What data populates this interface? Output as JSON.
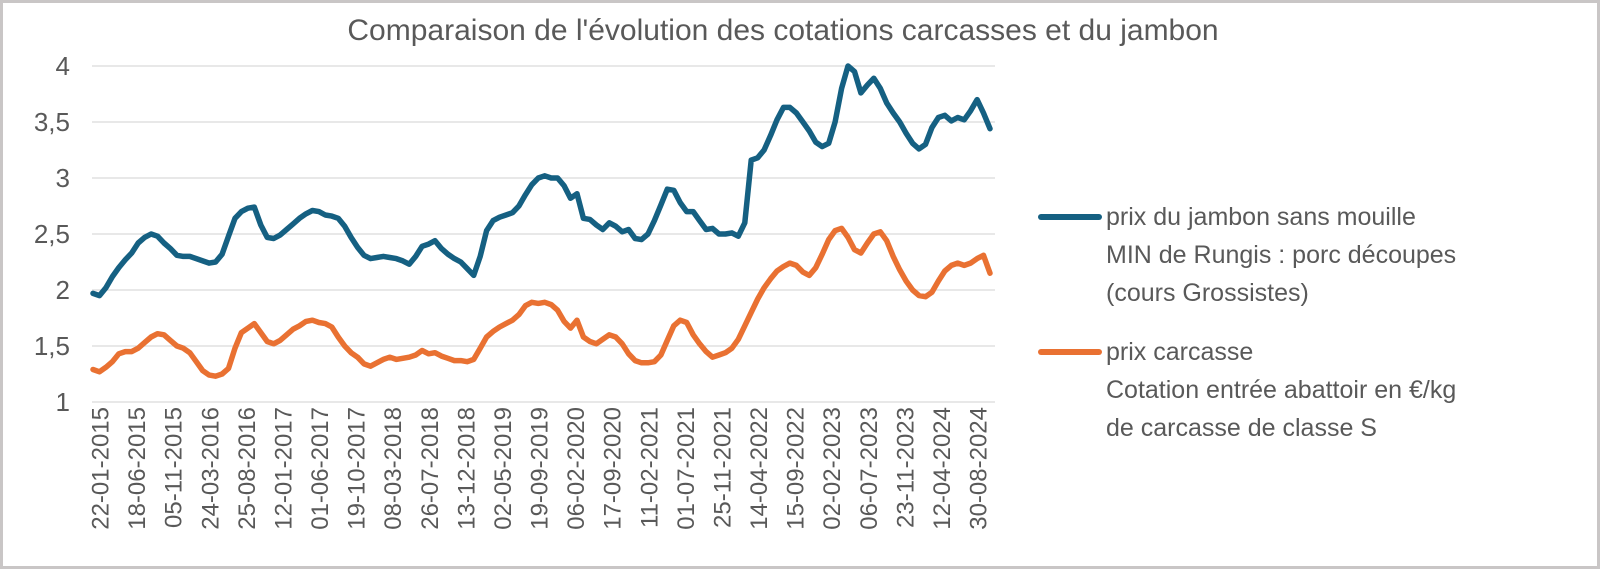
{
  "window": {
    "border_color": "#c9c6c6",
    "background": "#ffffff"
  },
  "chart": {
    "title": "Comparaison de l'évolution des cotations carcasses et du jambon",
    "styles": {
      "title_color": "#595959",
      "axis_text_color": "#595959",
      "gridline_color": "#d9d9d9",
      "series1_color": "#156082",
      "series2_color": "#E97132"
    },
    "y_axis_labels": [
      "4",
      "3,5",
      "3",
      "2,5",
      "2",
      "1,5",
      "1"
    ],
    "legend": {
      "items": [
        {
          "icon": "line-swatch",
          "lines": [
            "prix du jambon sans mouille",
            "MIN de Rungis : porc découpes",
            "(cours Grossistes)"
          ]
        },
        {
          "icon": "line-swatch",
          "lines": [
            "prix carcasse",
            "Cotation entrée abattoir en €/kg",
            "de carcasse de classe S"
          ]
        }
      ]
    }
  },
  "chart_data": {
    "type": "line",
    "title": "Comparaison de l'évolution des cotations carcasses et du jambon",
    "xlabel": "",
    "ylabel": "",
    "ylim": [
      1,
      4
    ],
    "y_ticks": [
      4,
      3.5,
      3,
      2.5,
      2,
      1.5,
      1
    ],
    "grid": true,
    "legend_position": "right",
    "x_tick_labels": [
      "22-01-2015",
      "18-06-2015",
      "05-11-2015",
      "24-03-2016",
      "25-08-2016",
      "12-01-2017",
      "01-06-2017",
      "19-10-2017",
      "08-03-2018",
      "26-07-2018",
      "13-12-2018",
      "02-05-2019",
      "19-09-2019",
      "06-02-2020",
      "17-09-2020",
      "11-02-2021",
      "01-07-2021",
      "25-11-2021",
      "14-04-2022",
      "15-09-2022",
      "02-02-2023",
      "06-07-2023",
      "23-11-2023",
      "12-04-2024",
      "30-08-2024"
    ],
    "series": [
      {
        "name": "prix du jambon sans mouille MIN de Rungis : porc découpes (cours Grossistes)",
        "color": "#156082",
        "values": [
          1.97,
          1.95,
          2.02,
          2.12,
          2.2,
          2.27,
          2.33,
          2.42,
          2.47,
          2.5,
          2.48,
          2.42,
          2.37,
          2.31,
          2.3,
          2.3,
          2.28,
          2.26,
          2.24,
          2.25,
          2.32,
          2.48,
          2.64,
          2.7,
          2.73,
          2.74,
          2.58,
          2.47,
          2.46,
          2.49,
          2.54,
          2.59,
          2.64,
          2.68,
          2.71,
          2.7,
          2.67,
          2.66,
          2.64,
          2.57,
          2.47,
          2.38,
          2.31,
          2.28,
          2.29,
          2.3,
          2.29,
          2.28,
          2.26,
          2.23,
          2.3,
          2.39,
          2.41,
          2.44,
          2.37,
          2.32,
          2.28,
          2.25,
          2.19,
          2.13,
          2.3,
          2.53,
          2.62,
          2.65,
          2.67,
          2.69,
          2.75,
          2.85,
          2.94,
          3.0,
          3.02,
          3.0,
          3.0,
          2.93,
          2.82,
          2.86,
          2.64,
          2.63,
          2.58,
          2.54,
          2.6,
          2.57,
          2.52,
          2.54,
          2.46,
          2.45,
          2.5,
          2.62,
          2.76,
          2.9,
          2.89,
          2.78,
          2.7,
          2.7,
          2.62,
          2.54,
          2.55,
          2.5,
          2.5,
          2.51,
          2.48,
          2.6,
          3.16,
          3.18,
          3.25,
          3.38,
          3.52,
          3.63,
          3.63,
          3.58,
          3.5,
          3.42,
          3.32,
          3.28,
          3.31,
          3.5,
          3.8,
          4.0,
          3.95,
          3.76,
          3.83,
          3.89,
          3.8,
          3.67,
          3.58,
          3.5,
          3.4,
          3.31,
          3.26,
          3.3,
          3.45,
          3.54,
          3.56,
          3.51,
          3.54,
          3.52,
          3.6,
          3.7,
          3.58,
          3.44
        ]
      },
      {
        "name": "prix carcasse Cotation entrée abattoir en €/kg de carcasse de classe S",
        "color": "#E97132",
        "values": [
          1.29,
          1.27,
          1.31,
          1.36,
          1.43,
          1.45,
          1.45,
          1.48,
          1.53,
          1.58,
          1.61,
          1.6,
          1.55,
          1.5,
          1.48,
          1.44,
          1.36,
          1.28,
          1.24,
          1.23,
          1.25,
          1.3,
          1.48,
          1.62,
          1.66,
          1.7,
          1.62,
          1.54,
          1.52,
          1.55,
          1.6,
          1.65,
          1.68,
          1.72,
          1.73,
          1.71,
          1.7,
          1.67,
          1.58,
          1.5,
          1.44,
          1.4,
          1.34,
          1.32,
          1.35,
          1.38,
          1.4,
          1.38,
          1.39,
          1.4,
          1.42,
          1.46,
          1.43,
          1.44,
          1.41,
          1.39,
          1.37,
          1.37,
          1.36,
          1.38,
          1.48,
          1.58,
          1.63,
          1.67,
          1.7,
          1.73,
          1.78,
          1.86,
          1.89,
          1.88,
          1.89,
          1.87,
          1.82,
          1.72,
          1.66,
          1.73,
          1.58,
          1.54,
          1.52,
          1.56,
          1.6,
          1.58,
          1.52,
          1.43,
          1.37,
          1.35,
          1.35,
          1.36,
          1.42,
          1.55,
          1.68,
          1.73,
          1.71,
          1.6,
          1.52,
          1.45,
          1.4,
          1.42,
          1.44,
          1.48,
          1.56,
          1.68,
          1.8,
          1.92,
          2.02,
          2.1,
          2.17,
          2.21,
          2.24,
          2.22,
          2.16,
          2.13,
          2.2,
          2.32,
          2.45,
          2.53,
          2.55,
          2.47,
          2.36,
          2.33,
          2.42,
          2.5,
          2.52,
          2.44,
          2.3,
          2.18,
          2.08,
          2.0,
          1.95,
          1.94,
          1.98,
          2.08,
          2.17,
          2.22,
          2.24,
          2.22,
          2.24,
          2.28,
          2.31,
          2.15
        ]
      }
    ]
  }
}
